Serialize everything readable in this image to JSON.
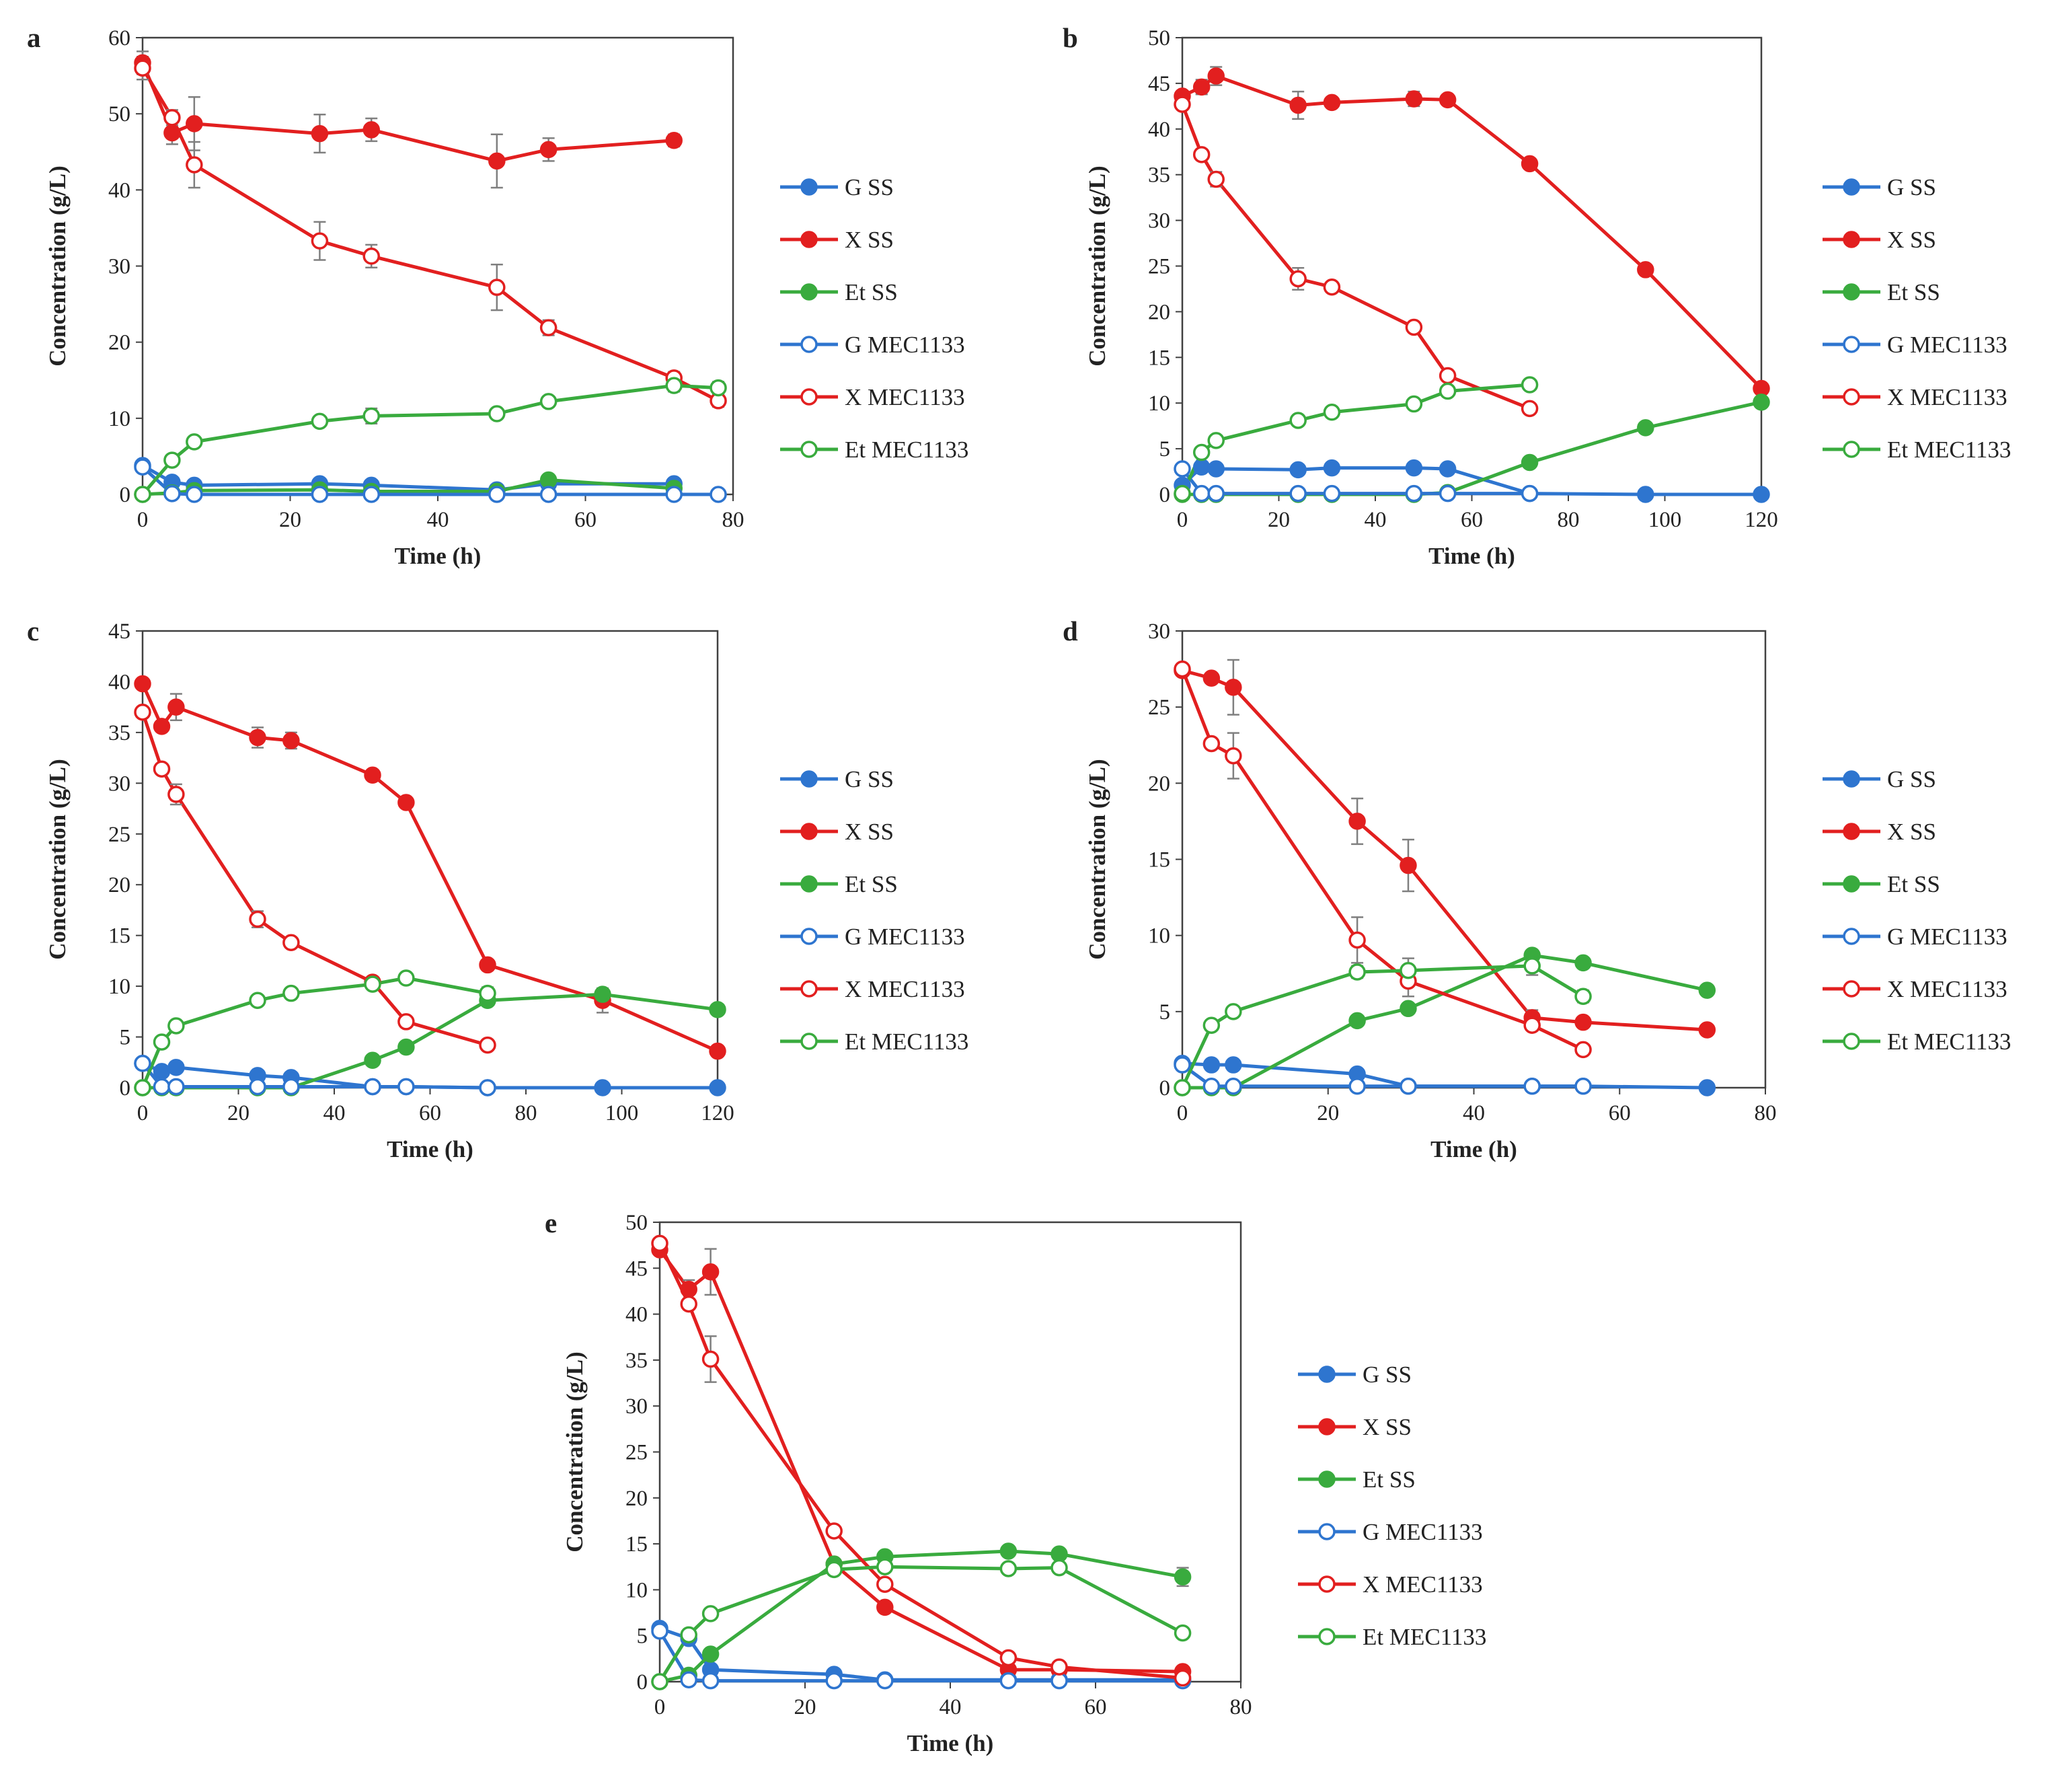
{
  "colors": {
    "G": "#2e75cf",
    "X": "#e21f1f",
    "Et": "#39ab3e",
    "errorbar": "#7f7f7f",
    "axis": "#404040"
  },
  "chart_data": [
    {
      "type": "line",
      "panel": "a",
      "xlabel": "Time (h)",
      "ylabel": "Concentration (g/L)",
      "xlim": [
        0,
        80
      ],
      "ylim": [
        0,
        60
      ],
      "xticks": [
        0,
        20,
        40,
        60,
        80
      ],
      "yticks": [
        0,
        10,
        20,
        30,
        40,
        50,
        60
      ],
      "legend": [
        "G SS",
        "X SS",
        "Et SS",
        "G MEC1133",
        "X MEC1133",
        "Et MEC1133"
      ],
      "series": [
        {
          "name": "G SS",
          "species": "G",
          "filled": true,
          "x": [
            0,
            4,
            7,
            24,
            31,
            48,
            55,
            72
          ],
          "y": [
            3.8,
            1.6,
            1.2,
            1.4,
            1.2,
            0.6,
            1.4,
            1.4
          ]
        },
        {
          "name": "X SS",
          "species": "X",
          "filled": true,
          "x": [
            0,
            4,
            7,
            24,
            31,
            48,
            55,
            72
          ],
          "y": [
            56.7,
            47.5,
            48.7,
            47.4,
            47.9,
            43.8,
            45.3,
            46.5
          ],
          "err": [
            1.5,
            1.5,
            3.5,
            2.5,
            1.5,
            3.5,
            1.5,
            0.8
          ]
        },
        {
          "name": "Et SS",
          "species": "Et",
          "filled": true,
          "x": [
            0,
            4,
            7,
            24,
            31,
            48,
            55,
            72
          ],
          "y": [
            0,
            0.2,
            0.5,
            0.6,
            0.4,
            0.4,
            1.9,
            0.8
          ]
        },
        {
          "name": "G MEC1133",
          "species": "G",
          "filled": false,
          "x": [
            0,
            4,
            7,
            24,
            31,
            48,
            55,
            72,
            78
          ],
          "y": [
            3.6,
            0.1,
            0,
            0,
            0,
            0,
            0,
            0,
            0
          ]
        },
        {
          "name": "X MEC1133",
          "species": "X",
          "filled": false,
          "x": [
            0,
            4,
            7,
            24,
            31,
            48,
            55,
            72,
            78
          ],
          "y": [
            56.0,
            49.5,
            43.3,
            33.3,
            31.3,
            27.2,
            21.9,
            15.3,
            12.3
          ],
          "err": [
            1.5,
            1.0,
            3.0,
            2.5,
            1.5,
            3.0,
            1.0,
            0.8,
            0.8
          ]
        },
        {
          "name": "Et MEC1133",
          "species": "Et",
          "filled": false,
          "x": [
            0,
            4,
            7,
            24,
            31,
            48,
            55,
            72,
            78
          ],
          "y": [
            0,
            4.5,
            6.9,
            9.6,
            10.3,
            10.6,
            12.2,
            14.3,
            14.0
          ],
          "err": [
            0,
            0.5,
            0.6,
            0.6,
            1.0,
            0.6,
            0.6,
            0.8,
            0.8
          ]
        }
      ]
    },
    {
      "type": "line",
      "panel": "b",
      "xlabel": "Time (h)",
      "ylabel": "Concentration (g/L)",
      "xlim": [
        0,
        120
      ],
      "ylim": [
        0,
        50
      ],
      "xticks": [
        0,
        20,
        40,
        60,
        80,
        100,
        120
      ],
      "yticks": [
        0,
        5,
        10,
        15,
        20,
        25,
        30,
        35,
        40,
        45,
        50
      ],
      "legend": [
        "G SS",
        "X SS",
        "Et SS",
        "G MEC1133",
        "X MEC1133",
        "Et MEC1133"
      ],
      "series": [
        {
          "name": "G SS",
          "species": "G",
          "filled": true,
          "x": [
            0,
            4,
            7,
            24,
            31,
            48,
            55,
            72,
            96,
            120
          ],
          "y": [
            1.0,
            3.0,
            2.8,
            2.7,
            2.9,
            2.9,
            2.8,
            0.1,
            0,
            0
          ]
        },
        {
          "name": "X SS",
          "species": "X",
          "filled": true,
          "x": [
            0,
            4,
            7,
            24,
            31,
            48,
            55,
            72,
            96,
            120
          ],
          "y": [
            43.6,
            44.6,
            45.8,
            42.6,
            42.9,
            43.3,
            43.2,
            36.2,
            24.6,
            11.6
          ],
          "err": [
            0.5,
            0.8,
            1.0,
            1.5,
            0.5,
            0.8,
            0.5,
            0.5,
            0.5,
            0.5
          ]
        },
        {
          "name": "Et SS",
          "species": "Et",
          "filled": true,
          "x": [
            0,
            4,
            7,
            24,
            31,
            48,
            55,
            72,
            96,
            120
          ],
          "y": [
            0,
            0,
            0,
            0,
            0,
            0,
            0.2,
            3.5,
            7.3,
            10.1
          ]
        },
        {
          "name": "G MEC1133",
          "species": "G",
          "filled": false,
          "x": [
            0,
            4,
            7,
            24,
            31,
            48,
            55,
            72
          ],
          "y": [
            2.8,
            0.1,
            0.1,
            0.1,
            0.1,
            0.1,
            0.1,
            0.1
          ]
        },
        {
          "name": "X MEC1133",
          "species": "X",
          "filled": false,
          "x": [
            0,
            4,
            7,
            24,
            31,
            48,
            55,
            72
          ],
          "y": [
            42.7,
            37.2,
            34.5,
            23.6,
            22.7,
            18.3,
            13.0,
            9.4
          ],
          "err": [
            0.5,
            0.5,
            0.8,
            1.2,
            0.5,
            0.5,
            0.5,
            0.5
          ]
        },
        {
          "name": "Et MEC1133",
          "species": "Et",
          "filled": false,
          "x": [
            0,
            4,
            7,
            24,
            31,
            48,
            55,
            72
          ],
          "y": [
            0.1,
            4.6,
            5.9,
            8.1,
            9.0,
            9.9,
            11.3,
            12.0
          ],
          "err": [
            0,
            0.3,
            0.3,
            0.5,
            0.5,
            0.5,
            0.5,
            0.3
          ]
        }
      ]
    },
    {
      "type": "line",
      "panel": "c",
      "xlabel": "Time (h)",
      "ylabel": "Concentration (g/L)",
      "xlim": [
        0,
        120
      ],
      "ylim": [
        0,
        45
      ],
      "xticks": [
        0,
        20,
        40,
        60,
        80,
        100,
        120
      ],
      "yticks": [
        0,
        5,
        10,
        15,
        20,
        25,
        30,
        35,
        40,
        45
      ],
      "legend": [
        "G SS",
        "X SS",
        "Et SS",
        "G MEC1133",
        "X MEC1133",
        "Et MEC1133"
      ],
      "series": [
        {
          "name": "G SS",
          "species": "G",
          "filled": true,
          "x": [
            0,
            4,
            7,
            24,
            31,
            48,
            55,
            72,
            96,
            120
          ],
          "y": [
            2.4,
            1.6,
            2.0,
            1.2,
            1.0,
            0.1,
            0.1,
            0,
            0,
            0
          ]
        },
        {
          "name": "X SS",
          "species": "X",
          "filled": true,
          "x": [
            0,
            4,
            7,
            24,
            31,
            48,
            55,
            72,
            96,
            120
          ],
          "y": [
            39.8,
            35.6,
            37.5,
            34.5,
            34.2,
            30.8,
            28.1,
            12.1,
            8.6,
            3.6
          ],
          "err": [
            0.5,
            0.5,
            1.3,
            1.0,
            0.8,
            0.5,
            0.5,
            0.4,
            1.2,
            0.4
          ]
        },
        {
          "name": "Et SS",
          "species": "Et",
          "filled": true,
          "x": [
            0,
            4,
            7,
            24,
            31,
            48,
            55,
            72,
            96,
            120
          ],
          "y": [
            0,
            0,
            0,
            0,
            0,
            2.7,
            4.0,
            8.6,
            9.2,
            7.7
          ]
        },
        {
          "name": "G MEC1133",
          "species": "G",
          "filled": false,
          "x": [
            0,
            4,
            7,
            24,
            31,
            48,
            55,
            72
          ],
          "y": [
            2.4,
            0.1,
            0.1,
            0.1,
            0.1,
            0.1,
            0.1,
            0
          ]
        },
        {
          "name": "X MEC1133",
          "species": "X",
          "filled": false,
          "x": [
            0,
            4,
            7,
            24,
            31,
            48,
            55,
            72
          ],
          "y": [
            37.0,
            31.4,
            28.9,
            16.6,
            14.3,
            10.4,
            6.5,
            4.2
          ],
          "err": [
            0.5,
            0.5,
            1.0,
            0.8,
            0.5,
            0.5,
            0.5,
            0.3
          ]
        },
        {
          "name": "Et MEC1133",
          "species": "Et",
          "filled": false,
          "x": [
            0,
            4,
            7,
            24,
            31,
            48,
            55,
            72
          ],
          "y": [
            0,
            4.5,
            6.1,
            8.6,
            9.3,
            10.2,
            10.8,
            9.3
          ],
          "err": [
            0,
            0.3,
            0.3,
            0.3,
            0.3,
            0.5,
            0.5,
            0.6
          ]
        }
      ]
    },
    {
      "type": "line",
      "panel": "d",
      "xlabel": "Time (h)",
      "ylabel": "Concentration (g/L)",
      "xlim": [
        0,
        80
      ],
      "ylim": [
        0,
        30
      ],
      "xticks": [
        0,
        20,
        40,
        60,
        80
      ],
      "yticks": [
        0,
        5,
        10,
        15,
        20,
        25,
        30
      ],
      "legend": [
        "G SS",
        "X SS",
        "Et SS",
        "G MEC1133",
        "X MEC1133",
        "Et MEC1133"
      ],
      "series": [
        {
          "name": "G SS",
          "species": "G",
          "filled": true,
          "x": [
            0,
            4,
            7,
            24,
            31,
            48,
            55,
            72
          ],
          "y": [
            1.6,
            1.5,
            1.5,
            0.9,
            0.1,
            0.1,
            0.1,
            0
          ]
        },
        {
          "name": "X SS",
          "species": "X",
          "filled": true,
          "x": [
            0,
            4,
            7,
            24,
            31,
            48,
            55,
            72
          ],
          "y": [
            27.4,
            26.9,
            26.3,
            17.5,
            14.6,
            4.6,
            4.3,
            3.8
          ],
          "err": [
            0.3,
            0.3,
            1.8,
            1.5,
            1.7,
            0.5,
            0.3,
            0.3
          ]
        },
        {
          "name": "Et SS",
          "species": "Et",
          "filled": true,
          "x": [
            0,
            4,
            7,
            24,
            31,
            48,
            55,
            72
          ],
          "y": [
            0,
            0,
            0,
            4.4,
            5.2,
            8.7,
            8.2,
            6.4
          ]
        },
        {
          "name": "G MEC1133",
          "species": "G",
          "filled": false,
          "x": [
            0,
            4,
            7,
            24,
            31,
            48,
            55
          ],
          "y": [
            1.5,
            0.1,
            0.1,
            0.1,
            0.1,
            0.1,
            0.1
          ]
        },
        {
          "name": "X MEC1133",
          "species": "X",
          "filled": false,
          "x": [
            0,
            4,
            7,
            24,
            31,
            48,
            55
          ],
          "y": [
            27.5,
            22.6,
            21.8,
            9.7,
            7.0,
            4.1,
            2.5
          ],
          "err": [
            0.3,
            0.3,
            1.5,
            1.5,
            1.0,
            0.3,
            0.2
          ]
        },
        {
          "name": "Et MEC1133",
          "species": "Et",
          "filled": false,
          "x": [
            0,
            4,
            7,
            24,
            31,
            48,
            55
          ],
          "y": [
            0,
            4.1,
            5.0,
            7.6,
            7.7,
            8.0,
            6.0
          ],
          "err": [
            0,
            0.3,
            0.3,
            0.4,
            0.8,
            0.6,
            0.4
          ]
        }
      ]
    },
    {
      "type": "line",
      "panel": "e",
      "xlabel": "Time (h)",
      "ylabel": "Concentration (g/L)",
      "xlim": [
        0,
        80
      ],
      "ylim": [
        0,
        50
      ],
      "xticks": [
        0,
        20,
        40,
        60,
        80
      ],
      "yticks": [
        0,
        5,
        10,
        15,
        20,
        25,
        30,
        35,
        40,
        45,
        50
      ],
      "legend": [
        "G SS",
        "X SS",
        "Et SS",
        "G MEC1133",
        "X MEC1133",
        "Et MEC1133"
      ],
      "series": [
        {
          "name": "G SS",
          "species": "G",
          "filled": true,
          "x": [
            0,
            4,
            7,
            24,
            31,
            48,
            55,
            72
          ],
          "y": [
            5.8,
            4.7,
            1.3,
            0.8,
            0.2,
            0.2,
            0.2,
            0.2
          ]
        },
        {
          "name": "X SS",
          "species": "X",
          "filled": true,
          "x": [
            0,
            4,
            7,
            24,
            31,
            48,
            55,
            72
          ],
          "y": [
            47.0,
            42.7,
            44.6,
            12.8,
            8.1,
            1.3,
            1.3,
            1.1
          ],
          "err": [
            0.5,
            1.0,
            2.5,
            0.5,
            0.4,
            0.3,
            0.3,
            0.2
          ]
        },
        {
          "name": "Et SS",
          "species": "Et",
          "filled": true,
          "x": [
            0,
            4,
            7,
            24,
            31,
            48,
            55,
            72
          ],
          "y": [
            0,
            0.7,
            3.0,
            12.8,
            13.6,
            14.2,
            13.9,
            11.4
          ],
          "err": [
            0,
            0.3,
            0.5,
            0.5,
            0.5,
            0.5,
            0.5,
            1.0
          ]
        },
        {
          "name": "G MEC1133",
          "species": "G",
          "filled": false,
          "x": [
            0,
            4,
            7,
            24,
            31,
            48,
            55,
            72
          ],
          "y": [
            5.5,
            0.2,
            0.1,
            0.1,
            0.1,
            0.1,
            0.1,
            0.1
          ]
        },
        {
          "name": "X MEC1133",
          "species": "X",
          "filled": false,
          "x": [
            0,
            4,
            7,
            24,
            31,
            48,
            55,
            72
          ],
          "y": [
            47.7,
            41.1,
            35.1,
            16.4,
            10.6,
            2.6,
            1.6,
            0.4
          ],
          "err": [
            0.5,
            0.5,
            2.5,
            0.5,
            0.4,
            0.3,
            0.3,
            0.2
          ]
        },
        {
          "name": "Et MEC1133",
          "species": "Et",
          "filled": false,
          "x": [
            0,
            4,
            7,
            24,
            31,
            48,
            55,
            72
          ],
          "y": [
            0,
            5.1,
            7.4,
            12.2,
            12.5,
            12.3,
            12.4,
            5.3
          ],
          "err": [
            0,
            0.3,
            0.3,
            0.5,
            0.5,
            0.5,
            0.5,
            0.3
          ]
        }
      ]
    }
  ]
}
